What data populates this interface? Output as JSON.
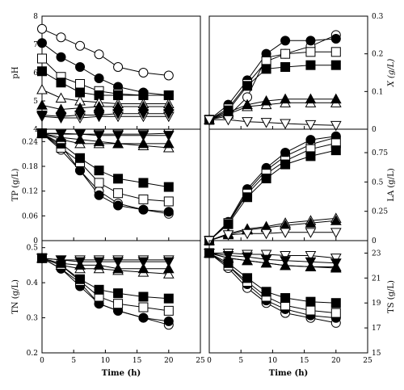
{
  "chart_data": [
    {
      "id": "pH",
      "type": "line",
      "col": 0,
      "row": 0,
      "ylabel": "pH",
      "ylabel_italic": false,
      "ylabel_side": "left",
      "xlim": [
        0,
        25
      ],
      "ylim": [
        4,
        8
      ],
      "xticks": [
        0,
        5,
        10,
        15,
        20,
        25
      ],
      "yticks": [
        4,
        5,
        6,
        7,
        8
      ],
      "yticks_fmt": [
        "4",
        "5",
        "6",
        "7",
        "8"
      ],
      "x": [
        0,
        3,
        6,
        9,
        12,
        16,
        20
      ],
      "series": [
        {
          "marker": "circle-open",
          "values": [
            7.55,
            7.25,
            6.95,
            6.65,
            6.2,
            6.0,
            5.9
          ]
        },
        {
          "marker": "circle-filled",
          "values": [
            7.05,
            6.55,
            6.2,
            5.8,
            5.5,
            5.3,
            5.2
          ]
        },
        {
          "marker": "square-open",
          "values": [
            6.5,
            5.85,
            5.6,
            5.35,
            5.25,
            5.2,
            5.2
          ]
        },
        {
          "marker": "square-filled",
          "values": [
            6.05,
            5.65,
            5.3,
            5.2,
            5.2,
            5.2,
            5.2
          ]
        },
        {
          "marker": "triangle-open",
          "values": [
            5.4,
            5.1,
            5.0,
            4.95,
            4.9,
            4.9,
            4.9
          ]
        },
        {
          "marker": "triangle-filled",
          "values": [
            4.85,
            4.7,
            4.75,
            4.8,
            4.8,
            4.8,
            4.8
          ]
        },
        {
          "marker": "tri-down-open",
          "values": [
            4.45,
            4.4,
            4.4,
            4.45,
            4.45,
            4.45,
            4.45
          ]
        },
        {
          "marker": "tri-down-filled",
          "values": [
            4.5,
            4.45,
            4.5,
            4.5,
            4.55,
            4.55,
            4.55
          ]
        }
      ]
    },
    {
      "id": "X",
      "type": "line",
      "col": 1,
      "row": 0,
      "ylabel": "X (g/L)",
      "ylabel_italic": true,
      "ylabel_side": "right",
      "xlim": [
        0,
        25
      ],
      "ylim": [
        0,
        0.3
      ],
      "xticks": [
        0,
        5,
        10,
        15,
        20,
        25
      ],
      "yticks": [
        0,
        0.1,
        0.2,
        0.3
      ],
      "yticks_fmt": [
        "0",
        "0.1",
        "0.2",
        "0.3"
      ],
      "x": [
        0,
        3,
        6,
        9,
        12,
        16,
        20
      ],
      "series": [
        {
          "marker": "circle-open",
          "values": [
            0.025,
            0.035,
            0.085,
            0.19,
            0.2,
            0.22,
            0.25
          ]
        },
        {
          "marker": "circle-filled",
          "values": [
            0.025,
            0.065,
            0.13,
            0.2,
            0.235,
            0.235,
            0.24
          ]
        },
        {
          "marker": "square-open",
          "values": [
            0.025,
            0.055,
            0.12,
            0.18,
            0.2,
            0.205,
            0.205
          ]
        },
        {
          "marker": "square-filled",
          "values": [
            0.025,
            0.05,
            0.115,
            0.16,
            0.165,
            0.17,
            0.17
          ]
        },
        {
          "marker": "triangle-open",
          "values": [
            0.025,
            0.04,
            0.06,
            0.065,
            0.07,
            0.07,
            0.07
          ]
        },
        {
          "marker": "triangle-filled",
          "values": [
            0.025,
            0.045,
            0.065,
            0.075,
            0.08,
            0.08,
            0.08
          ]
        },
        {
          "marker": "tri-down-open",
          "values": [
            0.025,
            0.025,
            0.02,
            0.018,
            0.015,
            0.012,
            0.01
          ]
        }
      ]
    },
    {
      "id": "TP",
      "type": "line",
      "col": 0,
      "row": 1,
      "ylabel": "TP (g/L)",
      "ylabel_italic": false,
      "ylabel_side": "left",
      "xlim": [
        0,
        25
      ],
      "ylim": [
        0,
        0.27
      ],
      "xticks": [
        0,
        5,
        10,
        15,
        20,
        25
      ],
      "yticks": [
        0,
        0.06,
        0.12,
        0.18,
        0.24
      ],
      "yticks_fmt": [
        "0",
        "0.06",
        "0.12",
        "0.18",
        "0.24"
      ],
      "x": [
        0,
        3,
        6,
        9,
        12,
        16,
        20
      ],
      "series": [
        {
          "marker": "circle-open",
          "values": [
            0.26,
            0.22,
            0.17,
            0.12,
            0.09,
            0.075,
            0.065
          ]
        },
        {
          "marker": "circle-filled",
          "values": [
            0.26,
            0.23,
            0.17,
            0.11,
            0.085,
            0.075,
            0.07
          ]
        },
        {
          "marker": "square-open",
          "values": [
            0.26,
            0.225,
            0.19,
            0.14,
            0.115,
            0.1,
            0.095
          ]
        },
        {
          "marker": "square-filled",
          "values": [
            0.26,
            0.235,
            0.2,
            0.17,
            0.15,
            0.14,
            0.13
          ]
        },
        {
          "marker": "triangle-open",
          "values": [
            0.26,
            0.245,
            0.235,
            0.235,
            0.235,
            0.23,
            0.225
          ]
        },
        {
          "marker": "triangle-filled",
          "values": [
            0.26,
            0.25,
            0.245,
            0.24,
            0.235,
            0.235,
            0.235
          ]
        },
        {
          "marker": "tri-down-open",
          "values": [
            0.26,
            0.26,
            0.258,
            0.258,
            0.258,
            0.258,
            0.26
          ]
        },
        {
          "marker": "tri-down-filled",
          "values": [
            0.26,
            0.258,
            0.258,
            0.255,
            0.255,
            0.255,
            0.255
          ]
        }
      ]
    },
    {
      "id": "LA",
      "type": "line",
      "col": 1,
      "row": 1,
      "ylabel": "LA (g/L)",
      "ylabel_italic": false,
      "ylabel_side": "right",
      "xlim": [
        0,
        25
      ],
      "ylim": [
        0,
        0.95
      ],
      "xticks": [
        0,
        5,
        10,
        15,
        20,
        25
      ],
      "yticks": [
        0,
        0.25,
        0.5,
        0.75
      ],
      "yticks_fmt": [
        "0",
        "0.25",
        "0.5",
        "0.75"
      ],
      "x": [
        0,
        3,
        6,
        9,
        12,
        16,
        20
      ],
      "series": [
        {
          "marker": "circle-open",
          "values": [
            0,
            0.15,
            0.42,
            0.6,
            0.72,
            0.82,
            0.88
          ]
        },
        {
          "marker": "circle-filled",
          "values": [
            0,
            0.16,
            0.44,
            0.62,
            0.75,
            0.86,
            0.89
          ]
        },
        {
          "marker": "square-open",
          "values": [
            0,
            0.15,
            0.4,
            0.57,
            0.68,
            0.78,
            0.83
          ]
        },
        {
          "marker": "square-filled",
          "values": [
            0,
            0.14,
            0.37,
            0.53,
            0.65,
            0.72,
            0.77
          ]
        },
        {
          "marker": "triangle-open",
          "values": [
            0,
            0.06,
            0.1,
            0.12,
            0.15,
            0.17,
            0.19
          ]
        },
        {
          "marker": "triangle-filled",
          "values": [
            0,
            0.05,
            0.09,
            0.11,
            0.13,
            0.15,
            0.17
          ]
        },
        {
          "marker": "tri-down-open",
          "values": [
            0,
            0.05,
            0.06,
            0.06,
            0.07,
            0.07,
            0.07
          ]
        }
      ]
    },
    {
      "id": "TN",
      "type": "line",
      "col": 0,
      "row": 2,
      "ylabel": "TN (g/L)",
      "ylabel_italic": false,
      "ylabel_side": "left",
      "xlim": [
        0,
        25
      ],
      "ylim": [
        0.2,
        0.52
      ],
      "xticks": [
        0,
        5,
        10,
        15,
        20,
        25
      ],
      "yticks": [
        0.2,
        0.3,
        0.4,
        0.5
      ],
      "yticks_fmt": [
        "0.2",
        "0.3",
        "0.4",
        "0.5"
      ],
      "x": [
        0,
        3,
        6,
        9,
        12,
        16,
        20
      ],
      "series": [
        {
          "marker": "circle-open",
          "values": [
            0.47,
            0.44,
            0.4,
            0.34,
            0.32,
            0.3,
            0.28
          ]
        },
        {
          "marker": "circle-filled",
          "values": [
            0.47,
            0.44,
            0.39,
            0.34,
            0.32,
            0.3,
            0.29
          ]
        },
        {
          "marker": "square-open",
          "values": [
            0.47,
            0.45,
            0.405,
            0.36,
            0.34,
            0.33,
            0.32
          ]
        },
        {
          "marker": "square-filled",
          "values": [
            0.47,
            0.45,
            0.41,
            0.38,
            0.37,
            0.36,
            0.355
          ]
        },
        {
          "marker": "triangle-open",
          "values": [
            0.47,
            0.45,
            0.44,
            0.44,
            0.435,
            0.43,
            0.425
          ]
        },
        {
          "marker": "triangle-filled",
          "values": [
            0.47,
            0.455,
            0.45,
            0.45,
            0.44,
            0.44,
            0.44
          ]
        },
        {
          "marker": "tri-down-open",
          "values": [
            0.47,
            0.465,
            0.465,
            0.465,
            0.465,
            0.465,
            0.465
          ]
        },
        {
          "marker": "tri-down-filled",
          "values": [
            0.47,
            0.465,
            0.46,
            0.46,
            0.46,
            0.46,
            0.46
          ]
        }
      ]
    },
    {
      "id": "TS",
      "type": "line",
      "col": 1,
      "row": 2,
      "ylabel": "TS (g/L)",
      "ylabel_italic": false,
      "ylabel_side": "right",
      "xlim": [
        0,
        25
      ],
      "ylim": [
        15,
        24
      ],
      "xticks": [
        0,
        5,
        10,
        15,
        20,
        25
      ],
      "yticks": [
        15,
        17,
        19,
        21,
        23
      ],
      "yticks_fmt": [
        "15",
        "17",
        "19",
        "21",
        "23"
      ],
      "x": [
        0,
        3,
        6,
        9,
        12,
        16,
        20
      ],
      "series": [
        {
          "marker": "circle-open",
          "values": [
            23,
            21.8,
            20.2,
            19,
            18.2,
            17.8,
            17.4
          ]
        },
        {
          "marker": "circle-filled",
          "values": [
            23,
            22,
            20.5,
            19.2,
            18.5,
            18,
            17.8
          ]
        },
        {
          "marker": "square-open",
          "values": [
            23,
            22,
            20.7,
            19.5,
            18.8,
            18.4,
            18.2
          ]
        },
        {
          "marker": "square-filled",
          "values": [
            23,
            22.2,
            21,
            19.9,
            19.4,
            19.1,
            19
          ]
        },
        {
          "marker": "triangle-open",
          "values": [
            23,
            22.6,
            22.4,
            22.2,
            22,
            21.9,
            21.9
          ]
        },
        {
          "marker": "triangle-filled",
          "values": [
            23,
            22.6,
            22.4,
            22.2,
            22,
            21.9,
            21.8
          ]
        },
        {
          "marker": "tri-down-open",
          "values": [
            23,
            23,
            22.9,
            22.9,
            22.8,
            22.8,
            22.6
          ]
        },
        {
          "marker": "tri-down-filled",
          "values": [
            23,
            22.8,
            22.7,
            22.5,
            22.4,
            22.3,
            22.2
          ]
        }
      ]
    }
  ],
  "xlabel": "Time (h)"
}
